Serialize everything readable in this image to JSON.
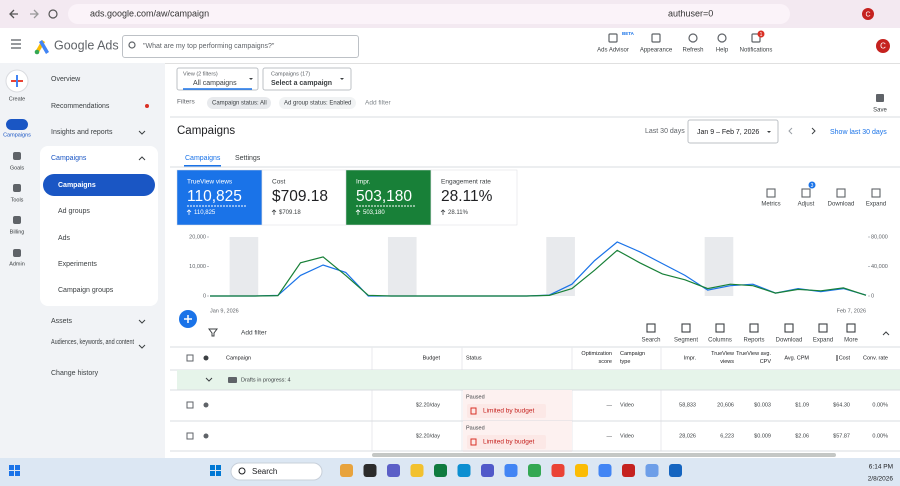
{
  "browser": {
    "url": "ads.google.com/aw/campaign",
    "url_tail": "authuser=0",
    "avatar": "C"
  },
  "header": {
    "product": "Google Ads",
    "search": "\"What are my top performing campaigns?\"",
    "beta": "BETA",
    "notification_count": "1",
    "actions": [
      "Ads Advisor",
      "Appearance",
      "Refresh",
      "Help",
      "Notifications"
    ],
    "avatar": "C"
  },
  "rail": [
    "Create",
    "Campaigns",
    "Goals",
    "Tools",
    "Billing",
    "Admin"
  ],
  "nav": {
    "top": [
      "Overview",
      "Recommendations",
      "Insights and reports"
    ],
    "section": "Campaigns",
    "sub": [
      "Campaigns",
      "Ad groups",
      "Ads",
      "Experiments",
      "Campaign groups"
    ],
    "bottom": [
      "Assets",
      "Audiences, keywords, and content",
      "Change history"
    ]
  },
  "filters": {
    "view_label": "View (2 filters)",
    "view_value": "All campaigns",
    "campaigns_label": "Campaigns (17)",
    "campaigns_value": "Select a campaign",
    "filters": "Filters",
    "chips": [
      "Campaign status: All",
      "Ad group status: Enabled"
    ],
    "add_filter": "Add filter",
    "save": "Save"
  },
  "page": {
    "title": "Campaigns",
    "range_label": "Last 30 days",
    "range": "Jan 9 – Feb 7, 2026",
    "show_last": "Show last 30 days",
    "tabs": [
      "Campaigns",
      "Settings"
    ]
  },
  "metrics": [
    {
      "value": "110,825",
      "change": "110,825"
    },
    {
      "label": "Cost",
      "value": "$709.18",
      "change": "$709.18"
    },
    {
      "value": "503,180",
      "change": "503,180"
    },
    {
      "label": "Engagement rate",
      "value": "28.11%",
      "change": "28.11%"
    }
  ],
  "chart_tools": [
    "Metrics",
    "Adjust",
    "Download",
    "Expand"
  ],
  "adjust_badge": "3",
  "chart_data": {
    "type": "line",
    "categories": [
      "Jan 9, 2026",
      null,
      null,
      null,
      null,
      null,
      null,
      null,
      null,
      null,
      null,
      null,
      null,
      null,
      null,
      null,
      null,
      null,
      null,
      null,
      null,
      null,
      null,
      null,
      null,
      null,
      null,
      null,
      null,
      "Feb 7, 2026"
    ],
    "series": [
      {
        "name": "TrueView views",
        "color": "#1a73e8",
        "values": [
          0,
          0,
          0,
          200,
          7000,
          10500,
          8000,
          0,
          0,
          0,
          0,
          0,
          0,
          0,
          0,
          300,
          4000,
          12000,
          18300,
          15000,
          11000,
          7000,
          2000,
          3500,
          4000,
          1000,
          2500,
          1500,
          2500,
          300
        ]
      },
      {
        "name": "Impr.",
        "color": "#188038",
        "axis": "y2",
        "values": [
          0,
          0,
          0,
          500,
          45000,
          53000,
          28000,
          1000,
          0,
          0,
          0,
          0,
          0,
          0,
          0,
          800,
          10000,
          35000,
          62000,
          45000,
          30000,
          22000,
          10000,
          16000,
          14000,
          4000,
          9000,
          7000,
          11000,
          1000
        ]
      }
    ],
    "ylim": [
      0,
      20000
    ],
    "yticks": [
      0,
      {
        "value": 10000,
        "label": "10,000"
      },
      {
        "value": 20000,
        "label": "20,000"
      }
    ],
    "y2lim": [
      0,
      80000
    ],
    "y2ticks": [
      0,
      {
        "value": 40000,
        "label": "40,000"
      },
      {
        "value": 80000,
        "label": "80,000"
      }
    ],
    "grid": false
  },
  "table": {
    "tools": [
      "Search",
      "Segment",
      "Columns",
      "Reports",
      "Download",
      "Expand",
      "More"
    ],
    "add_filter": "Add filter",
    "headers": [
      "Campaign",
      "Budget",
      "Status",
      "Optimization score",
      "Campaign type",
      "Impr.",
      "TrueView views",
      "TrueView avg. CPV",
      "Avg. CPM",
      "Cost",
      "Conv. rate"
    ],
    "group": "Drafts in progress: 4",
    "rows": [
      [
        "$2.20/day",
        "Paused",
        "Limited by budget",
        "—",
        "Video",
        "58,833",
        "20,606",
        "$0.003",
        "$1.09",
        "$64.30",
        "0.00%"
      ],
      [
        "$2.20/day",
        "Paused",
        "Limited by budget",
        "—",
        "Video",
        "28,026",
        "6,223",
        "$0.009",
        "$2.06",
        "$57.87",
        "0.00%"
      ]
    ]
  },
  "taskbar": {
    "search": "Search",
    "time": "6:14 PM",
    "date": "2/8/2026"
  }
}
